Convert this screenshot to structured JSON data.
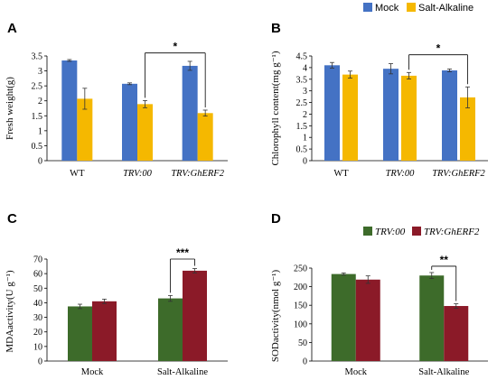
{
  "legends": {
    "top": [
      {
        "label": "Mock",
        "color": "#4472C4"
      },
      {
        "label": "Salt-Alkaline",
        "color": "#F5B800"
      }
    ],
    "bottom": [
      {
        "label": "TRV:00",
        "color": "#3D6B2A"
      },
      {
        "label": "TRV:GhERF2",
        "color": "#8B1A28"
      }
    ]
  },
  "chart_data": [
    {
      "panel": "A",
      "type": "bar",
      "ylabel": "Fresh weight(g)",
      "categories": [
        "WT",
        "TRV:00",
        "TRV:GhERF2"
      ],
      "categories_italic": [
        false,
        true,
        true
      ],
      "ylim": [
        0,
        3.5
      ],
      "ytick_step": 0.5,
      "yticks": [
        "0",
        "0.5",
        "1",
        "1.5",
        "2",
        "2.5",
        "3",
        "3.5"
      ],
      "series": [
        {
          "name": "Mock",
          "color": "#4472C4",
          "values": [
            3.35,
            2.57,
            3.17
          ],
          "errors": [
            0.03,
            0.03,
            0.15
          ]
        },
        {
          "name": "Salt-Alkaline",
          "color": "#F5B800",
          "values": [
            2.07,
            1.89,
            1.59
          ],
          "errors": [
            0.35,
            0.12,
            0.1
          ]
        }
      ],
      "significance": [
        {
          "label": "*",
          "from": [
            1,
            1
          ],
          "to": [
            2,
            1
          ],
          "level": 3.6
        }
      ]
    },
    {
      "panel": "B",
      "type": "bar",
      "ylabel": "Chlorophyll content(mg g⁻¹)",
      "categories": [
        "WT",
        "TRV:00",
        "TRV:GhERF2"
      ],
      "categories_italic": [
        false,
        true,
        true
      ],
      "ylim": [
        0,
        4.5
      ],
      "ytick_step": 0.5,
      "yticks": [
        "0",
        "0.5",
        "1",
        "1.5",
        "2",
        "2.5",
        "3",
        "3.5",
        "4",
        "4.5"
      ],
      "series": [
        {
          "name": "Mock",
          "color": "#4472C4",
          "values": [
            4.1,
            3.95,
            3.88
          ],
          "errors": [
            0.12,
            0.22,
            0.06
          ]
        },
        {
          "name": "Salt-Alkaline",
          "color": "#F5B800",
          "values": [
            3.7,
            3.65,
            2.72
          ],
          "errors": [
            0.15,
            0.14,
            0.45
          ]
        }
      ],
      "significance": [
        {
          "label": "*",
          "from": [
            1,
            1
          ],
          "to": [
            2,
            1
          ],
          "level": 4.55
        }
      ]
    },
    {
      "panel": "C",
      "type": "bar",
      "ylabel": "MDAactivity(U g⁻¹)",
      "categories": [
        "Mock",
        "Salt-Alkaline"
      ],
      "categories_italic": [
        false,
        false
      ],
      "ylim": [
        0,
        70
      ],
      "ytick_step": 10,
      "yticks": [
        "0",
        "10",
        "20",
        "30",
        "40",
        "50",
        "60",
        "70"
      ],
      "series": [
        {
          "name": "TRV:00",
          "color": "#3D6B2A",
          "values": [
            37.5,
            43
          ],
          "errors": [
            1.5,
            2
          ]
        },
        {
          "name": "TRV:GhERF2",
          "color": "#8B1A28",
          "values": [
            41,
            62
          ],
          "errors": [
            1.5,
            1.5
          ]
        }
      ],
      "significance": [
        {
          "label": "***",
          "from": [
            1,
            0
          ],
          "to": [
            1,
            1
          ],
          "level": 70
        }
      ]
    },
    {
      "panel": "D",
      "type": "bar",
      "ylabel": "SODactivity(nmol g⁻¹)",
      "categories": [
        "Mock",
        "Salt-Alkaline"
      ],
      "categories_italic": [
        false,
        false
      ],
      "ylim": [
        0,
        250
      ],
      "ytick_step": 50,
      "yticks": [
        "0",
        "50",
        "100",
        "150",
        "200",
        "250"
      ],
      "series": [
        {
          "name": "TRV:00",
          "color": "#3D6B2A",
          "values": [
            234,
            230
          ],
          "errors": [
            3,
            8
          ]
        },
        {
          "name": "TRV:GhERF2",
          "color": "#8B1A28",
          "values": [
            219,
            148
          ],
          "errors": [
            10,
            6
          ]
        }
      ],
      "significance": [
        {
          "label": "**",
          "from": [
            1,
            0
          ],
          "to": [
            1,
            1
          ],
          "level": 255
        }
      ]
    }
  ]
}
